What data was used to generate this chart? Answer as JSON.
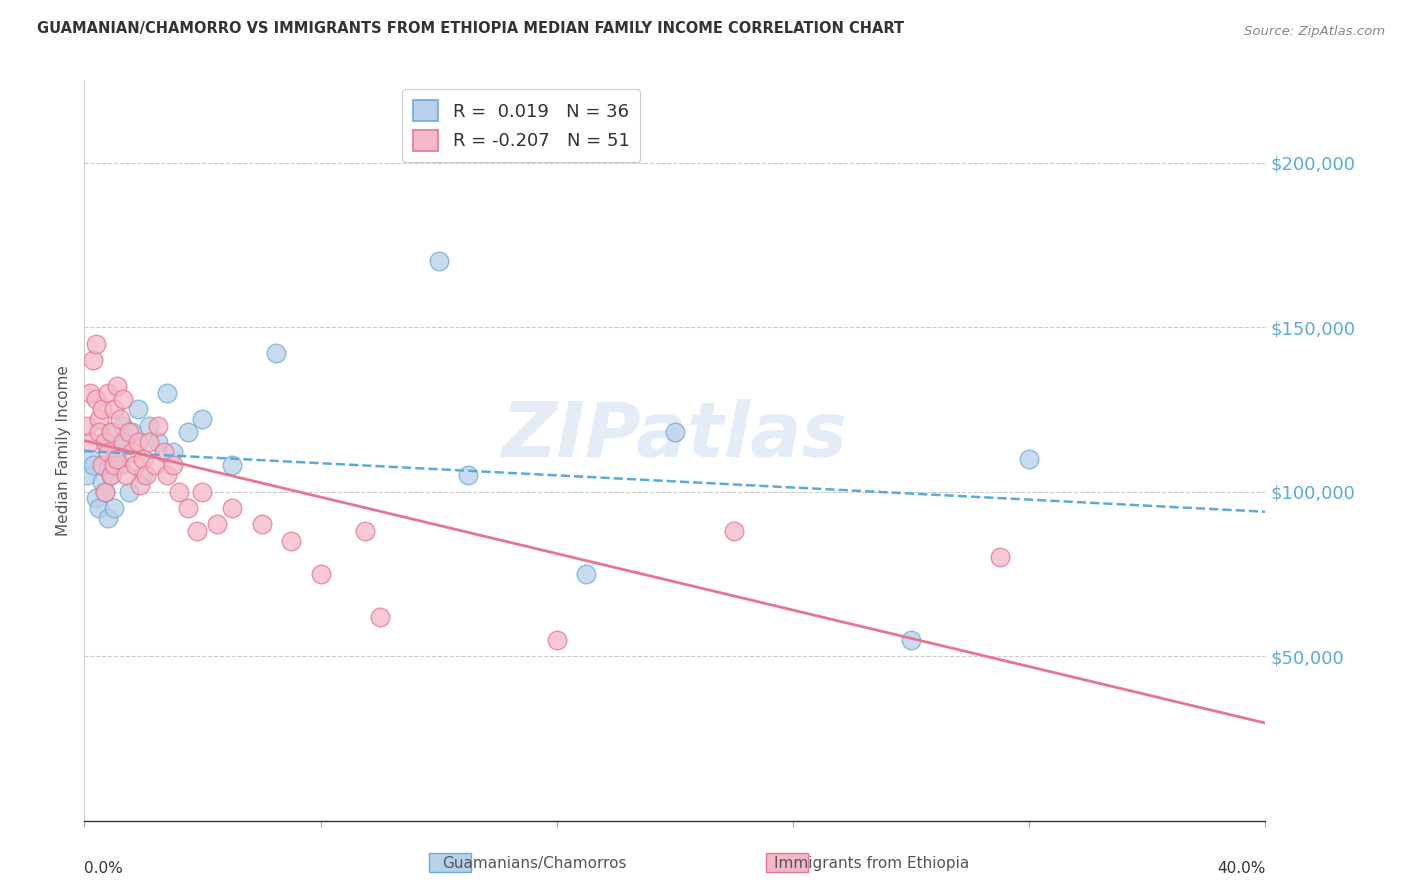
{
  "title": "GUAMANIAN/CHAMORRO VS IMMIGRANTS FROM ETHIOPIA MEDIAN FAMILY INCOME CORRELATION CHART",
  "source": "Source: ZipAtlas.com",
  "ylabel": "Median Family Income",
  "y_tick_labels": [
    "$50,000",
    "$100,000",
    "$150,000",
    "$200,000"
  ],
  "y_tick_values": [
    50000,
    100000,
    150000,
    200000
  ],
  "y_min": 0,
  "y_max": 225000,
  "x_min": 0.0,
  "x_max": 0.4,
  "x_ticks": [
    0.0,
    0.08,
    0.16,
    0.24,
    0.32,
    0.4
  ],
  "x_tick_labels": [
    "0.0%",
    "",
    "",
    "",
    "",
    "40.0%"
  ],
  "legend1_r": " 0.019",
  "legend1_n": "36",
  "legend2_r": "-0.207",
  "legend2_n": "51",
  "blue_color": "#b8d0ea",
  "pink_color": "#f5b8c8",
  "blue_edge_color": "#6aaed6",
  "pink_edge_color": "#e8758f",
  "blue_line_color": "#5aabdc",
  "pink_line_color": "#e8758f",
  "right_label_color": "#5aabdc",
  "watermark_color": "#c5d8ef",
  "watermark": "ZIPatlas",
  "bottom_label_blue": "Guamanians/Chamorros",
  "bottom_label_pink": "Immigrants from Ethiopia",
  "blue_scatter_x": [
    0.001,
    0.002,
    0.003,
    0.004,
    0.005,
    0.006,
    0.007,
    0.007,
    0.008,
    0.008,
    0.009,
    0.009,
    0.01,
    0.01,
    0.011,
    0.012,
    0.013,
    0.014,
    0.015,
    0.016,
    0.018,
    0.02,
    0.022,
    0.025,
    0.028,
    0.03,
    0.035,
    0.04,
    0.05,
    0.065,
    0.12,
    0.13,
    0.17,
    0.2,
    0.28,
    0.32
  ],
  "blue_scatter_y": [
    105000,
    110000,
    108000,
    98000,
    95000,
    103000,
    100000,
    115000,
    92000,
    107000,
    118000,
    105000,
    110000,
    95000,
    112000,
    108000,
    120000,
    115000,
    100000,
    118000,
    125000,
    105000,
    120000,
    115000,
    130000,
    112000,
    118000,
    122000,
    108000,
    142000,
    170000,
    105000,
    75000,
    118000,
    55000,
    110000
  ],
  "pink_scatter_x": [
    0.001,
    0.002,
    0.002,
    0.003,
    0.004,
    0.004,
    0.005,
    0.005,
    0.006,
    0.006,
    0.007,
    0.007,
    0.008,
    0.008,
    0.009,
    0.009,
    0.01,
    0.01,
    0.011,
    0.011,
    0.012,
    0.013,
    0.013,
    0.014,
    0.015,
    0.016,
    0.017,
    0.018,
    0.019,
    0.02,
    0.021,
    0.022,
    0.024,
    0.025,
    0.027,
    0.028,
    0.03,
    0.032,
    0.035,
    0.038,
    0.04,
    0.045,
    0.05,
    0.06,
    0.07,
    0.08,
    0.095,
    0.1,
    0.16,
    0.22,
    0.31
  ],
  "pink_scatter_y": [
    120000,
    130000,
    115000,
    140000,
    145000,
    128000,
    122000,
    118000,
    125000,
    108000,
    115000,
    100000,
    130000,
    112000,
    118000,
    105000,
    125000,
    108000,
    132000,
    110000,
    122000,
    115000,
    128000,
    105000,
    118000,
    112000,
    108000,
    115000,
    102000,
    110000,
    105000,
    115000,
    108000,
    120000,
    112000,
    105000,
    108000,
    100000,
    95000,
    88000,
    100000,
    90000,
    95000,
    90000,
    85000,
    75000,
    88000,
    62000,
    55000,
    88000,
    80000
  ]
}
